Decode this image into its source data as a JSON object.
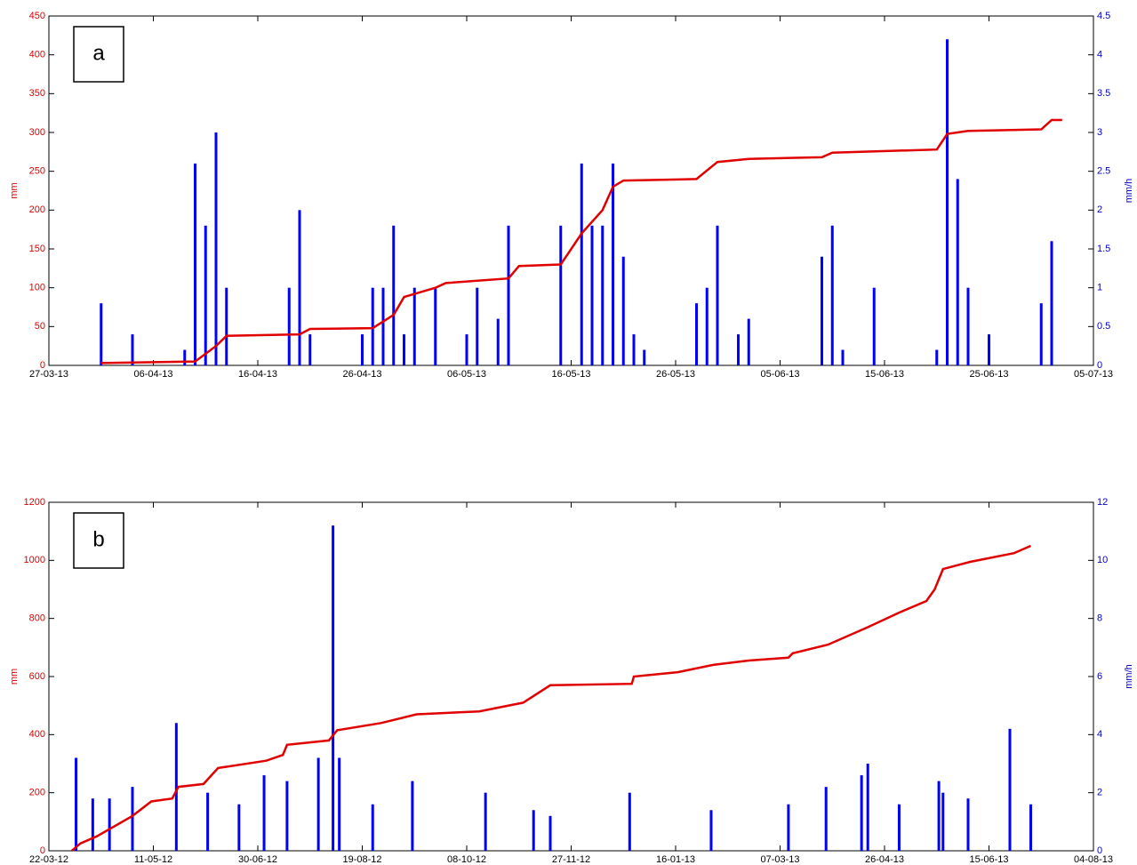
{
  "chart_data": [
    {
      "type": "line",
      "label": "a",
      "ylabel": "mm",
      "y2label": "mm/h",
      "xlim": [
        "2013-03-27",
        "2013-07-05"
      ],
      "xticks": [
        {
          "value": "2013-03-27",
          "label": "27-03-13"
        },
        {
          "value": "2013-04-06",
          "label": "06-04-13"
        },
        {
          "value": "2013-04-16",
          "label": "16-04-13"
        },
        {
          "value": "2013-04-26",
          "label": "26-04-13"
        },
        {
          "value": "2013-05-06",
          "label": "06-05-13"
        },
        {
          "value": "2013-05-16",
          "label": "16-05-13"
        },
        {
          "value": "2013-05-26",
          "label": "26-05-13"
        },
        {
          "value": "2013-06-05",
          "label": "05-06-13"
        },
        {
          "value": "2013-06-15",
          "label": "15-06-13"
        },
        {
          "value": "2013-06-25",
          "label": "25-06-13"
        },
        {
          "value": "2013-07-05",
          "label": "05-07-13"
        }
      ],
      "ylim": [
        0,
        450
      ],
      "yticks": [
        0,
        50,
        100,
        150,
        200,
        250,
        300,
        350,
        400,
        450
      ],
      "y2lim": [
        0,
        4.5
      ],
      "y2ticks": [
        0,
        0.5,
        1,
        1.5,
        2,
        2.5,
        3,
        3.5,
        4,
        4.5
      ],
      "series": [
        {
          "type": "bar",
          "axis": "y2",
          "color": "#0000ff",
          "x": [
            "2013-04-01",
            "2013-04-04",
            "2013-04-09",
            "2013-04-10",
            "2013-04-11",
            "2013-04-12",
            "2013-04-13",
            "2013-04-19",
            "2013-04-20",
            "2013-04-21",
            "2013-04-26",
            "2013-04-27",
            "2013-04-28",
            "2013-04-29",
            "2013-04-30",
            "2013-05-01",
            "2013-05-03",
            "2013-05-06",
            "2013-05-07",
            "2013-05-09",
            "2013-05-10",
            "2013-05-15",
            "2013-05-17",
            "2013-05-18",
            "2013-05-19",
            "2013-05-20",
            "2013-05-21",
            "2013-05-22",
            "2013-05-23",
            "2013-05-28",
            "2013-05-29",
            "2013-05-30",
            "2013-06-01",
            "2013-06-02",
            "2013-06-09",
            "2013-06-10",
            "2013-06-11",
            "2013-06-14",
            "2013-06-20",
            "2013-06-21",
            "2013-06-22",
            "2013-06-23",
            "2013-06-25",
            "2013-06-30",
            "2013-07-01"
          ],
          "values": [
            0.8,
            0.4,
            0.2,
            2.6,
            1.8,
            3.0,
            1.0,
            1.0,
            2.0,
            0.4,
            0.4,
            1.0,
            1.0,
            1.8,
            0.4,
            1.0,
            1.0,
            0.4,
            1.0,
            0.6,
            1.8,
            1.8,
            2.6,
            1.8,
            1.8,
            2.6,
            1.4,
            0.4,
            0.2,
            0.8,
            1.0,
            1.8,
            0.4,
            0.6,
            1.4,
            1.8,
            0.2,
            1.0,
            0.2,
            4.2,
            2.4,
            1.0,
            0.4,
            0.8,
            1.6
          ]
        },
        {
          "type": "line",
          "color": "#e00000",
          "x": [
            "2013-04-01",
            "2013-04-10",
            "2013-04-12",
            "2013-04-13",
            "2013-04-20",
            "2013-04-21",
            "2013-04-27",
            "2013-04-29",
            "2013-04-30",
            "2013-05-03",
            "2013-05-04",
            "2013-05-10",
            "2013-05-11",
            "2013-05-15",
            "2013-05-17",
            "2013-05-19",
            "2013-05-20",
            "2013-05-21",
            "2013-05-28",
            "2013-05-30",
            "2013-06-02",
            "2013-06-09",
            "2013-06-10",
            "2013-06-20",
            "2013-06-21",
            "2013-06-23",
            "2013-06-30",
            "2013-07-01",
            "2013-07-02"
          ],
          "values": [
            3,
            5,
            25,
            38,
            40,
            47,
            48,
            65,
            88,
            100,
            106,
            112,
            128,
            130,
            170,
            200,
            230,
            238,
            240,
            262,
            266,
            268,
            274,
            278,
            298,
            302,
            304,
            316,
            316
          ]
        }
      ]
    },
    {
      "type": "line",
      "label": "b",
      "ylabel": "mm",
      "y2label": "mm/h",
      "xlim": [
        "2012-03-22",
        "2013-08-04"
      ],
      "xticks": [
        {
          "value": "2012-03-22",
          "label": "22-03-12"
        },
        {
          "value": "2012-05-11",
          "label": "11-05-12"
        },
        {
          "value": "2012-06-30",
          "label": "30-06-12"
        },
        {
          "value": "2012-08-19",
          "label": "19-08-12"
        },
        {
          "value": "2012-10-08",
          "label": "08-10-12"
        },
        {
          "value": "2012-11-27",
          "label": "27-11-12"
        },
        {
          "value": "2013-01-16",
          "label": "16-01-13"
        },
        {
          "value": "2013-03-07",
          "label": "07-03-13"
        },
        {
          "value": "2013-04-26",
          "label": "26-04-13"
        },
        {
          "value": "2013-06-15",
          "label": "15-06-13"
        },
        {
          "value": "2013-08-04",
          "label": "04-08-13"
        }
      ],
      "ylim": [
        0,
        1200
      ],
      "yticks": [
        0,
        200,
        400,
        600,
        800,
        1000,
        1200
      ],
      "y2lim": [
        0,
        12
      ],
      "y2ticks": [
        0,
        2,
        4,
        6,
        8,
        10,
        12
      ],
      "series": [
        {
          "type": "bar",
          "axis": "y2",
          "color": "#0000ff",
          "x": [
            "2012-04-04",
            "2012-04-12",
            "2012-04-20",
            "2012-05-01",
            "2012-05-22",
            "2012-06-06",
            "2012-06-21",
            "2012-07-03",
            "2012-07-14",
            "2012-07-29",
            "2012-08-05",
            "2012-08-08",
            "2012-08-24",
            "2012-09-12",
            "2012-10-17",
            "2012-11-09",
            "2012-11-17",
            "2012-12-25",
            "2013-02-02",
            "2013-03-11",
            "2013-03-29",
            "2013-04-15",
            "2013-04-18",
            "2013-05-03",
            "2013-05-22",
            "2013-05-24",
            "2013-06-05",
            "2013-06-25",
            "2013-07-05"
          ],
          "values": [
            3.2,
            1.8,
            1.8,
            2.2,
            4.4,
            2.0,
            1.6,
            2.6,
            2.4,
            3.2,
            11.2,
            3.2,
            1.6,
            2.4,
            2.0,
            1.4,
            1.2,
            2.0,
            1.4,
            1.6,
            2.2,
            2.6,
            3.0,
            1.6,
            2.4,
            2.0,
            1.8,
            4.2,
            1.6
          ]
        },
        {
          "type": "line",
          "color": "#e00000",
          "x": [
            "2012-04-02",
            "2012-04-06",
            "2012-04-14",
            "2012-05-01",
            "2012-05-10",
            "2012-05-20",
            "2012-05-23",
            "2012-06-04",
            "2012-06-11",
            "2012-07-04",
            "2012-07-12",
            "2012-07-14",
            "2012-08-03",
            "2012-08-07",
            "2012-08-28",
            "2012-09-14",
            "2012-10-14",
            "2012-11-04",
            "2012-11-17",
            "2012-12-26",
            "2012-12-27",
            "2013-01-17",
            "2013-02-03",
            "2013-02-20",
            "2013-03-11",
            "2013-03-13",
            "2013-03-30",
            "2013-04-18",
            "2013-05-03",
            "2013-05-16",
            "2013-05-20",
            "2013-05-24",
            "2013-06-06",
            "2013-06-27",
            "2013-07-05"
          ],
          "values": [
            0,
            25,
            50,
            120,
            170,
            180,
            220,
            230,
            285,
            310,
            330,
            365,
            380,
            415,
            440,
            470,
            480,
            510,
            570,
            575,
            600,
            615,
            640,
            655,
            665,
            680,
            710,
            770,
            820,
            860,
            900,
            970,
            995,
            1025,
            1050
          ]
        }
      ]
    }
  ]
}
